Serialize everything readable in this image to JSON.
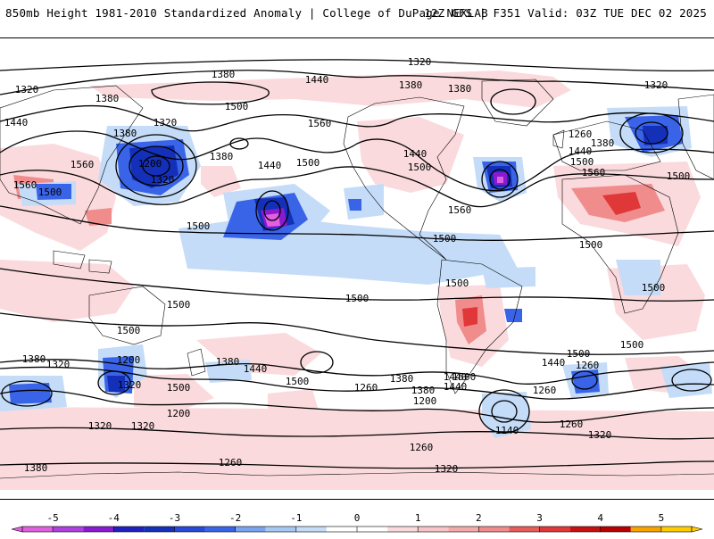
{
  "header": {
    "left": "850mb Height 1981-2010 Standardized Anomaly | College of DuPage NEXLAB",
    "right": "12Z GFS | F351 Valid: 03Z TUE DEC 02 2025"
  },
  "colors": {
    "neg5": "#e060e0",
    "neg4": "#8a1ad0",
    "neg3": "#1430b8",
    "neg2": "#3a64e8",
    "neg1": "#c4dcf8",
    "zero": "#ffffff",
    "pos1": "#fadadd",
    "pos2": "#f08c8c",
    "pos3": "#e03838",
    "pos4": "#b80000",
    "pos5": "#f7a300",
    "pos6": "#ffcc00",
    "contour": "#000000",
    "coast": "#000000"
  },
  "contour_labels": [
    {
      "text": "1320",
      "id": "c1"
    },
    {
      "text": "1380",
      "id": "c2"
    },
    {
      "text": "1440",
      "id": "c3"
    },
    {
      "text": "1380",
      "id": "c4"
    },
    {
      "text": "1380",
      "id": "c5"
    },
    {
      "text": "1320",
      "id": "c6"
    },
    {
      "text": "1320",
      "id": "c7"
    },
    {
      "text": "1380",
      "id": "c8"
    },
    {
      "text": "1500",
      "id": "c9"
    },
    {
      "text": "1440",
      "id": "c10"
    },
    {
      "text": "1320",
      "id": "c11"
    },
    {
      "text": "1380",
      "id": "c12"
    },
    {
      "text": "1560",
      "id": "c13"
    },
    {
      "text": "1200",
      "id": "c14"
    },
    {
      "text": "1320",
      "id": "c15"
    },
    {
      "text": "1560",
      "id": "c16"
    },
    {
      "text": "1560",
      "id": "c17"
    },
    {
      "text": "1500",
      "id": "c18"
    },
    {
      "text": "1380",
      "id": "c19"
    },
    {
      "text": "1440",
      "id": "c20"
    },
    {
      "text": "1500",
      "id": "c21"
    },
    {
      "text": "1440",
      "id": "c22"
    },
    {
      "text": "1500",
      "id": "c23"
    },
    {
      "text": "1260",
      "id": "c24"
    },
    {
      "text": "1380",
      "id": "c25"
    },
    {
      "text": "1440",
      "id": "c26"
    },
    {
      "text": "1500",
      "id": "c27"
    },
    {
      "text": "1560",
      "id": "c28"
    },
    {
      "text": "1500",
      "id": "c29"
    },
    {
      "text": "1500",
      "id": "c30"
    },
    {
      "text": "1560",
      "id": "c31"
    },
    {
      "text": "1500",
      "id": "c32"
    },
    {
      "text": "1500",
      "id": "c33"
    },
    {
      "text": "1500",
      "id": "c34"
    },
    {
      "text": "1500",
      "id": "c35"
    },
    {
      "text": "1500",
      "id": "c36"
    },
    {
      "text": "1500",
      "id": "c37"
    },
    {
      "text": "1500",
      "id": "c38"
    },
    {
      "text": "1500",
      "id": "c39"
    },
    {
      "text": "1500",
      "id": "c40"
    },
    {
      "text": "1440",
      "id": "c41"
    },
    {
      "text": "1380",
      "id": "c42"
    },
    {
      "text": "1320",
      "id": "c43"
    },
    {
      "text": "1200",
      "id": "c44"
    },
    {
      "text": "1380",
      "id": "c45"
    },
    {
      "text": "1440",
      "id": "c46"
    },
    {
      "text": "1500",
      "id": "c47"
    },
    {
      "text": "1260",
      "id": "c48"
    },
    {
      "text": "1380",
      "id": "c49"
    },
    {
      "text": "1440",
      "id": "c50"
    },
    {
      "text": "1500",
      "id": "c51"
    },
    {
      "text": "1440",
      "id": "c52"
    },
    {
      "text": "1380",
      "id": "c53"
    },
    {
      "text": "1260",
      "id": "c54"
    },
    {
      "text": "1320",
      "id": "c55"
    },
    {
      "text": "1200",
      "id": "c56"
    },
    {
      "text": "1260",
      "id": "c57"
    },
    {
      "text": "1320",
      "id": "c58"
    },
    {
      "text": "1320",
      "id": "c59"
    },
    {
      "text": "1200",
      "id": "c60"
    },
    {
      "text": "1140",
      "id": "c61"
    },
    {
      "text": "1260",
      "id": "c62"
    },
    {
      "text": "1320",
      "id": "c63"
    },
    {
      "text": "1380",
      "id": "c64"
    },
    {
      "text": "1260",
      "id": "c65"
    },
    {
      "text": "1260",
      "id": "c66"
    },
    {
      "text": "1320",
      "id": "c67"
    },
    {
      "text": "1500",
      "id": "c68"
    }
  ],
  "legend": {
    "ticks": [
      "-5",
      "-4",
      "-3",
      "-2",
      "-1",
      "0",
      "1",
      "2",
      "3",
      "4",
      "5"
    ],
    "min": -5.5,
    "max": 5.5
  }
}
